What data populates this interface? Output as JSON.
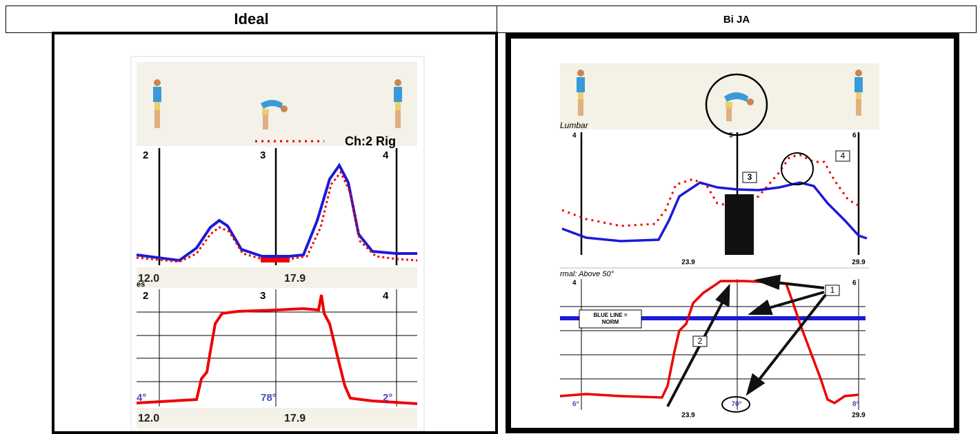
{
  "header": {
    "left": "Ideal",
    "right": "Bi JA"
  },
  "ideal": {
    "top_channel": "Ch:2 Rig",
    "top_markers": [
      "2",
      "3",
      "4"
    ],
    "top_times": [
      "12.0",
      "17.9"
    ],
    "bottom_label": "es",
    "bottom_markers": [
      "2",
      "3",
      "4"
    ],
    "angles": [
      "4°",
      "78°",
      "2°"
    ],
    "bottom_times": [
      "12.0",
      "17.9"
    ]
  },
  "bija": {
    "top_label": "Lumbar",
    "top_markers": [
      "4",
      "5",
      "6"
    ],
    "top_times": [
      "23.9",
      "29.9"
    ],
    "bottom_label": "rmal: Above 50°",
    "bottom_markers": [
      "4",
      "6"
    ],
    "legend": [
      "BLUE LINE =",
      "NORM"
    ],
    "callouts": [
      "1",
      "2",
      "3",
      "4"
    ],
    "angles": [
      "6°",
      "70°",
      "8°"
    ],
    "bottom_times": [
      "23.9",
      "29.9"
    ]
  }
}
